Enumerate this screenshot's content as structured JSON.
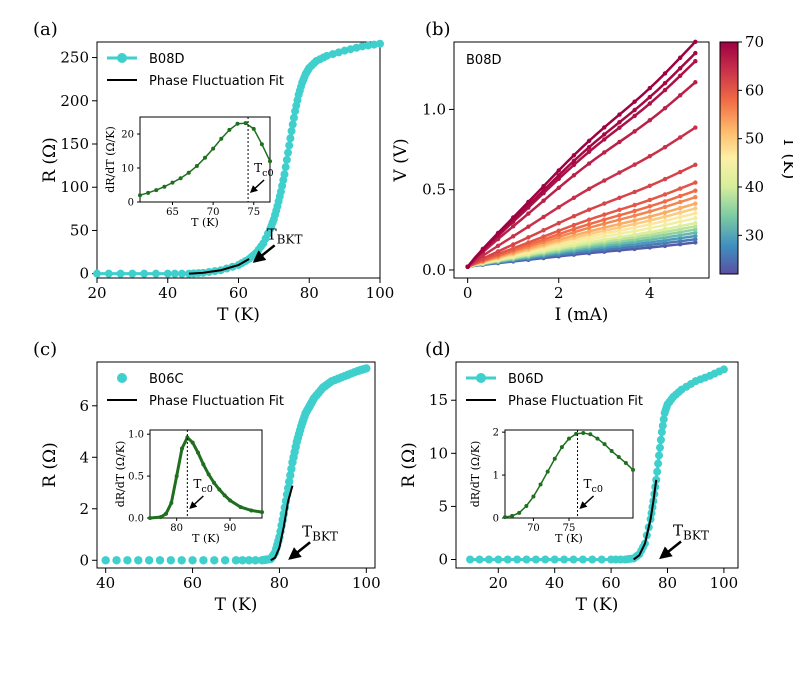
{
  "colors": {
    "cyan": "#3fcfcc",
    "green": "#1f6f1f",
    "fit": "#000000",
    "cmap": [
      "#5a4fa2",
      "#3f8fc0",
      "#7ccba4",
      "#d7ee9a",
      "#fdf0a6",
      "#fdb96a",
      "#f06b45",
      "#c8304a",
      "#9e0142"
    ]
  },
  "panels": [
    {
      "id": "a",
      "label": "(a)",
      "type": "line",
      "xlabel": "T (K)",
      "ylabel": "R (Ω)",
      "xlim": [
        20,
        100
      ],
      "ylim": [
        -5,
        268
      ],
      "xticks": [
        20,
        40,
        60,
        80,
        100
      ],
      "yticks": [
        0,
        50,
        100,
        150,
        200,
        250
      ],
      "series": [
        {
          "name": "B08D",
          "kind": "data",
          "x": [
            20,
            30,
            40,
            46,
            50,
            55,
            60,
            63,
            65,
            67,
            69,
            70,
            71,
            72,
            73,
            74,
            75,
            76,
            77,
            78,
            79,
            80,
            82,
            85,
            90,
            95,
            100
          ],
          "y": [
            0,
            0,
            0,
            0,
            1,
            4,
            10,
            17,
            24,
            35,
            52,
            63,
            78,
            95,
            115,
            140,
            165,
            188,
            207,
            221,
            231,
            238,
            246,
            252,
            258,
            263,
            266
          ]
        },
        {
          "name": "Phase Fluctuation Fit",
          "kind": "fit",
          "x": [
            46,
            50,
            55,
            60,
            63
          ],
          "y": [
            0,
            1,
            4,
            10,
            17
          ]
        }
      ],
      "annotation": {
        "text_main": "T",
        "text_sub": "BKT",
        "x": 64,
        "y": 12
      },
      "inset": {
        "xlim": [
          61,
          77
        ],
        "ylim": [
          0,
          25
        ],
        "xticks": [
          65,
          70,
          75
        ],
        "yticks": [
          0,
          10,
          20
        ],
        "xlabel": "T (K)",
        "ylabel": "dR/dT (Ω/K)",
        "x": [
          61,
          62,
          63,
          64,
          65,
          66,
          67,
          68,
          69,
          70,
          71,
          72,
          73,
          74,
          75,
          76,
          77
        ],
        "y": [
          2,
          2.7,
          3.5,
          4.5,
          5.7,
          7,
          8.6,
          10.6,
          13,
          15.7,
          18.6,
          21.2,
          23,
          23.2,
          21.5,
          17,
          12
        ],
        "vline": 74.3,
        "ann_main": "T",
        "ann_sub": "c0"
      }
    },
    {
      "id": "b",
      "label": "(b)",
      "type": "line",
      "title": "B08D",
      "xlabel": "I (mA)",
      "ylabel": "V (V)",
      "xlim": [
        -0.3,
        5.3
      ],
      "ylim": [
        -0.05,
        1.42
      ],
      "xticks": [
        0,
        2,
        4
      ],
      "yticks": [
        0.0,
        0.5,
        1.0
      ],
      "ytick_labels": [
        "0.0",
        "0.5",
        "1.0"
      ],
      "colorbar": {
        "label": "T (K)",
        "range": [
          22,
          70
        ],
        "ticks": [
          30,
          40,
          50,
          60,
          70
        ]
      },
      "series": [
        {
          "name": "70 K",
          "vmax": 1.39,
          "temp": 70
        },
        {
          "name": "69 K",
          "vmax": 1.32,
          "temp": 69
        },
        {
          "name": "68 K",
          "vmax": 1.27,
          "temp": 68
        },
        {
          "name": "66 K",
          "vmax": 1.14,
          "temp": 66
        },
        {
          "name": "64 K",
          "vmax": 0.86,
          "temp": 64
        },
        {
          "name": "62 K",
          "vmax": 0.63,
          "temp": 62
        },
        {
          "name": "60 K",
          "vmax": 0.52,
          "temp": 60
        },
        {
          "name": "58 K",
          "vmax": 0.47,
          "temp": 58
        },
        {
          "name": "56 K",
          "vmax": 0.43,
          "temp": 56
        },
        {
          "name": "53 K",
          "vmax": 0.39,
          "temp": 53
        },
        {
          "name": "50 K",
          "vmax": 0.36,
          "temp": 50
        },
        {
          "name": "47 K",
          "vmax": 0.33,
          "temp": 47
        },
        {
          "name": "44 K",
          "vmax": 0.3,
          "temp": 44
        },
        {
          "name": "41 K",
          "vmax": 0.27,
          "temp": 41
        },
        {
          "name": "38 K",
          "vmax": 0.25,
          "temp": 38
        },
        {
          "name": "35 K",
          "vmax": 0.23,
          "temp": 35
        },
        {
          "name": "32 K",
          "vmax": 0.21,
          "temp": 32
        },
        {
          "name": "29 K",
          "vmax": 0.19,
          "temp": 29
        },
        {
          "name": "26 K",
          "vmax": 0.17,
          "temp": 26
        },
        {
          "name": "23 K",
          "vmax": 0.15,
          "temp": 23
        }
      ]
    },
    {
      "id": "c",
      "label": "(c)",
      "type": "scatter",
      "xlabel": "T (K)",
      "ylabel": "R (Ω)",
      "xlim": [
        38,
        102
      ],
      "ylim": [
        -0.3,
        7.7
      ],
      "xticks": [
        40,
        60,
        80,
        100
      ],
      "yticks": [
        0,
        2,
        4,
        6
      ],
      "series": [
        {
          "name": "B06C",
          "kind": "data",
          "x": [
            40,
            50,
            60,
            70,
            76,
            78,
            79,
            80,
            81,
            82,
            83,
            84,
            85,
            86,
            87,
            88,
            90,
            92,
            95,
            98,
            100
          ],
          "y": [
            0,
            0,
            0,
            0,
            0,
            0.05,
            0.3,
            0.9,
            1.8,
            2.8,
            3.8,
            4.6,
            5.2,
            5.7,
            6.0,
            6.3,
            6.7,
            6.95,
            7.15,
            7.35,
            7.45
          ]
        },
        {
          "name": "Phase Fluctuation Fit",
          "kind": "fit",
          "x": [
            78,
            79,
            80,
            81,
            82,
            83
          ],
          "y": [
            0,
            0.1,
            0.5,
            1.3,
            2.3,
            2.9
          ]
        }
      ],
      "annotation": {
        "text_main": "T",
        "text_sub": "BKT",
        "x": 82,
        "y": 0
      },
      "inset": {
        "xlim": [
          75,
          96
        ],
        "ylim": [
          0,
          1.05
        ],
        "xticks": [
          80,
          90
        ],
        "yticks": [
          0.0,
          0.5,
          1.0
        ],
        "ytick_labels": [
          "0.0",
          "0.5",
          "1.0"
        ],
        "xlabel": "T (K)",
        "ylabel": "dR/dT (Ω/K)",
        "x": [
          75,
          77,
          78,
          79,
          80,
          81,
          82,
          83,
          84,
          85,
          86,
          87,
          88,
          89,
          90,
          92,
          94,
          96
        ],
        "y": [
          0,
          0.01,
          0.05,
          0.18,
          0.5,
          0.83,
          0.96,
          0.9,
          0.78,
          0.64,
          0.52,
          0.42,
          0.34,
          0.27,
          0.21,
          0.13,
          0.09,
          0.07
        ],
        "vline": 82,
        "ann_main": "T",
        "ann_sub": "c0"
      }
    },
    {
      "id": "d",
      "label": "(d)",
      "type": "line",
      "xlabel": "T (K)",
      "ylabel": "R (Ω)",
      "xlim": [
        5,
        105
      ],
      "ylim": [
        -0.8,
        18.6
      ],
      "xticks": [
        20,
        40,
        60,
        80,
        100
      ],
      "yticks": [
        0,
        5,
        10,
        15
      ],
      "series": [
        {
          "name": "B06D",
          "kind": "data",
          "x": [
            10,
            20,
            30,
            40,
            50,
            60,
            65,
            68,
            70,
            72,
            74,
            75,
            76,
            77,
            78,
            79,
            80,
            82,
            85,
            90,
            95,
            100
          ],
          "y": [
            0,
            0,
            0,
            0,
            0,
            0,
            0,
            0.1,
            0.5,
            1.5,
            3.8,
            5.5,
            7.5,
            9.8,
            12,
            13.8,
            14.6,
            15.3,
            16,
            16.8,
            17.3,
            17.9
          ]
        },
        {
          "name": "Phase Fluctuation Fit",
          "kind": "fit",
          "x": [
            68,
            70,
            72,
            74,
            75,
            76
          ],
          "y": [
            0,
            0.4,
            1.5,
            3.8,
            5.5,
            7.5
          ]
        }
      ],
      "annotation": {
        "text_main": "T",
        "text_sub": "BKT",
        "x": 77,
        "y": 0
      },
      "inset": {
        "xlim": [
          66,
          84
        ],
        "ylim": [
          0,
          2.05
        ],
        "xticks": [
          70,
          75
        ],
        "yticks": [
          0,
          1,
          2
        ],
        "xlabel": "T (K)",
        "ylabel": "dR/dT (Ω/K)",
        "x": [
          66,
          67,
          68,
          69,
          70,
          71,
          72,
          73,
          74,
          75,
          76,
          77,
          78,
          79,
          80,
          81,
          82,
          83,
          84
        ],
        "y": [
          0.02,
          0.05,
          0.12,
          0.28,
          0.5,
          0.78,
          1.08,
          1.38,
          1.65,
          1.85,
          1.96,
          1.98,
          1.95,
          1.85,
          1.72,
          1.56,
          1.42,
          1.28,
          1.12
        ],
        "vline": 76.2,
        "ann_main": "T",
        "ann_sub": "c0"
      }
    }
  ]
}
